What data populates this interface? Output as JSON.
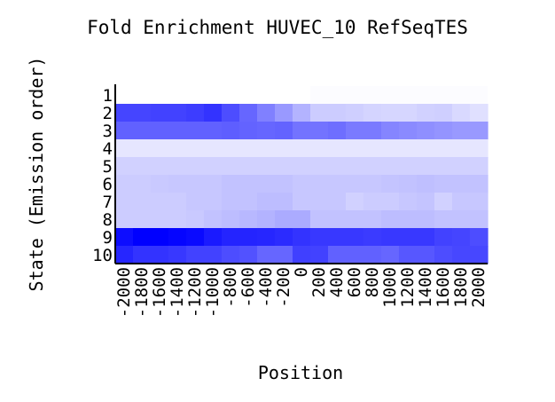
{
  "chart_data": {
    "type": "heatmap",
    "title": "Fold Enrichment HUVEC_10 RefSeqTES",
    "xlabel": "Position",
    "ylabel": "State (Emission order)",
    "x_tick_labels": [
      "-2000",
      "-1800",
      "-1600",
      "-1400",
      "-1200",
      "-1000",
      "-800",
      "-600",
      "-400",
      "-200",
      "0",
      "200",
      "400",
      "600",
      "800",
      "1000",
      "1200",
      "1400",
      "1600",
      "1800",
      "2000"
    ],
    "y_tick_labels": [
      "1",
      "2",
      "3",
      "4",
      "5",
      "6",
      "7",
      "8",
      "9",
      "10"
    ],
    "color_low": "#ffffff",
    "color_high": "#0000ff",
    "value_range": [
      0,
      1
    ],
    "values": [
      [
        0.0,
        0.0,
        0.0,
        0.0,
        0.0,
        0.0,
        0.0,
        0.0,
        0.0,
        0.0,
        0.0,
        0.01,
        0.01,
        0.01,
        0.01,
        0.01,
        0.01,
        0.01,
        0.01,
        0.01,
        0.01
      ],
      [
        0.73,
        0.73,
        0.74,
        0.74,
        0.76,
        0.8,
        0.7,
        0.6,
        0.5,
        0.4,
        0.3,
        0.2,
        0.2,
        0.19,
        0.17,
        0.16,
        0.16,
        0.18,
        0.19,
        0.15,
        0.12
      ],
      [
        0.62,
        0.62,
        0.62,
        0.62,
        0.62,
        0.62,
        0.63,
        0.61,
        0.6,
        0.61,
        0.55,
        0.55,
        0.57,
        0.52,
        0.52,
        0.48,
        0.46,
        0.44,
        0.42,
        0.4,
        0.4
      ],
      [
        0.1,
        0.1,
        0.1,
        0.1,
        0.1,
        0.1,
        0.1,
        0.1,
        0.1,
        0.1,
        0.1,
        0.1,
        0.1,
        0.1,
        0.1,
        0.1,
        0.1,
        0.1,
        0.1,
        0.1,
        0.1
      ],
      [
        0.18,
        0.18,
        0.18,
        0.18,
        0.18,
        0.18,
        0.18,
        0.18,
        0.18,
        0.18,
        0.18,
        0.18,
        0.18,
        0.18,
        0.18,
        0.18,
        0.18,
        0.18,
        0.18,
        0.18,
        0.18
      ],
      [
        0.2,
        0.2,
        0.21,
        0.22,
        0.22,
        0.22,
        0.24,
        0.24,
        0.24,
        0.24,
        0.22,
        0.22,
        0.22,
        0.22,
        0.22,
        0.23,
        0.24,
        0.25,
        0.24,
        0.24,
        0.24
      ],
      [
        0.2,
        0.2,
        0.2,
        0.2,
        0.22,
        0.22,
        0.24,
        0.24,
        0.26,
        0.26,
        0.22,
        0.22,
        0.22,
        0.18,
        0.2,
        0.2,
        0.22,
        0.23,
        0.18,
        0.22,
        0.22
      ],
      [
        0.2,
        0.2,
        0.2,
        0.2,
        0.21,
        0.24,
        0.26,
        0.28,
        0.3,
        0.33,
        0.33,
        0.24,
        0.24,
        0.24,
        0.24,
        0.26,
        0.26,
        0.26,
        0.24,
        0.24,
        0.24
      ],
      [
        0.95,
        1.0,
        1.0,
        0.98,
        0.96,
        0.9,
        0.86,
        0.86,
        0.85,
        0.83,
        0.8,
        0.78,
        0.78,
        0.78,
        0.77,
        0.78,
        0.78,
        0.78,
        0.74,
        0.73,
        0.7
      ],
      [
        0.85,
        0.8,
        0.8,
        0.78,
        0.74,
        0.74,
        0.7,
        0.68,
        0.6,
        0.6,
        0.75,
        0.74,
        0.62,
        0.62,
        0.62,
        0.6,
        0.66,
        0.66,
        0.7,
        0.72,
        0.72
      ]
    ]
  }
}
